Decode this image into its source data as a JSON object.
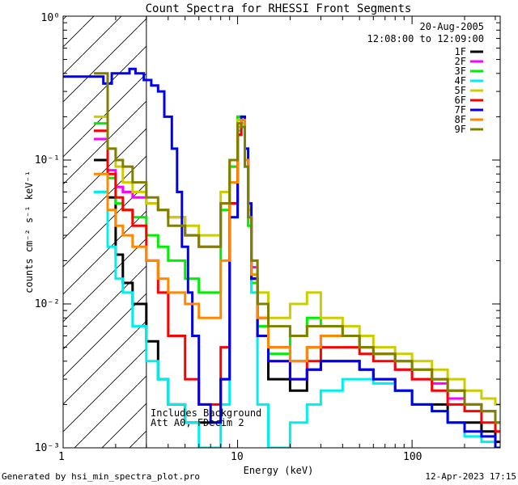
{
  "chart_data": {
    "type": "line",
    "title": "Count Spectra for RHESSI Front Segments",
    "xlabel": "Energy (keV)",
    "ylabel": "counts cm⁻² s⁻¹ keV⁻¹",
    "xscale": "log",
    "yscale": "log",
    "xlim": [
      1.0,
      320
    ],
    "ylim": [
      0.001,
      1.0
    ],
    "x_ticks": [
      "1",
      "10",
      "100"
    ],
    "y_ticks": [
      "10⁻³",
      "10⁻²",
      "10⁻¹",
      "10⁰"
    ],
    "date": "20-Aug-2005",
    "time_range": "12:08:00 to 12:09:00",
    "annotation_lines": [
      "Includes Background",
      "Att A0, FDecim 2"
    ],
    "hatched_region_keV": [
      1.0,
      3.0
    ],
    "series": [
      {
        "name": "1F",
        "color": "#000000",
        "x": [
          1.5,
          1.8,
          2.0,
          2.2,
          2.5,
          3.0,
          3.5,
          4.0,
          5.0,
          6.0,
          8.0,
          9.0,
          10.0,
          10.5,
          11.0,
          11.5,
          12.0,
          13.0,
          15.0,
          20.0,
          25.0,
          30.0,
          40.0,
          50.0,
          60.0,
          80.0,
          100.0,
          130.0,
          160.0,
          200.0,
          250.0,
          300.0
        ],
        "values": [
          0.1,
          0.055,
          0.022,
          0.014,
          0.01,
          0.0055,
          0.003,
          0.002,
          0.0015,
          0.0015,
          0.003,
          0.05,
          0.15,
          0.17,
          0.1,
          0.04,
          0.015,
          0.006,
          0.003,
          0.0025,
          0.0035,
          0.004,
          0.004,
          0.0035,
          0.003,
          0.0025,
          0.002,
          0.002,
          0.0015,
          0.0015,
          0.0013,
          0.0011
        ]
      },
      {
        "name": "2F",
        "color": "#ff00ff",
        "x": [
          1.5,
          1.8,
          2.0,
          2.2,
          2.5,
          3.0,
          3.5,
          4.0,
          5.0,
          6.0,
          8.0,
          9.0,
          10.0,
          10.5,
          11.0,
          11.5,
          12.0,
          13.0,
          15.0,
          20.0,
          25.0,
          30.0,
          40.0,
          50.0,
          60.0,
          80.0,
          100.0,
          130.0,
          160.0,
          200.0,
          250.0,
          300.0
        ],
        "values": [
          0.14,
          0.085,
          0.065,
          0.06,
          0.055,
          0.05,
          0.045,
          0.04,
          0.03,
          0.025,
          0.05,
          0.09,
          0.2,
          0.19,
          0.1,
          0.04,
          0.018,
          0.008,
          0.005,
          0.004,
          0.005,
          0.006,
          0.006,
          0.005,
          0.0045,
          0.0035,
          0.003,
          0.0028,
          0.0022,
          0.002,
          0.0018,
          0.0015
        ]
      },
      {
        "name": "3F",
        "color": "#00ee00",
        "x": [
          1.5,
          1.8,
          2.0,
          2.2,
          2.5,
          3.0,
          3.5,
          4.0,
          5.0,
          6.0,
          8.0,
          9.0,
          10.0,
          10.5,
          11.0,
          11.5,
          12.0,
          13.0,
          15.0,
          20.0,
          25.0,
          30.0,
          40.0,
          50.0,
          60.0,
          80.0,
          100.0,
          130.0,
          160.0,
          200.0,
          250.0,
          300.0
        ],
        "values": [
          0.18,
          0.075,
          0.05,
          0.045,
          0.04,
          0.03,
          0.025,
          0.02,
          0.015,
          0.012,
          0.045,
          0.09,
          0.2,
          0.18,
          0.09,
          0.035,
          0.014,
          0.007,
          0.0045,
          0.006,
          0.008,
          0.007,
          0.006,
          0.005,
          0.0045,
          0.004,
          0.0035,
          0.003,
          0.0025,
          0.002,
          0.0018,
          0.0015
        ]
      },
      {
        "name": "4F",
        "color": "#00eeee",
        "x": [
          1.5,
          1.8,
          2.0,
          2.2,
          2.5,
          3.0,
          3.5,
          4.0,
          5.0,
          6.0,
          8.0,
          9.0,
          10.0,
          10.5,
          11.0,
          11.5,
          12.0,
          13.0,
          15.0,
          20.0,
          25.0,
          30.0,
          40.0,
          50.0,
          60.0,
          80.0,
          100.0,
          130.0,
          160.0,
          200.0,
          250.0,
          300.0
        ],
        "values": [
          0.06,
          0.025,
          0.015,
          0.012,
          0.007,
          0.004,
          0.003,
          0.002,
          0.0015,
          0.001,
          0.002,
          0.04,
          0.16,
          0.2,
          0.12,
          0.04,
          0.012,
          0.002,
          0.001,
          0.0015,
          0.002,
          0.0025,
          0.003,
          0.003,
          0.0028,
          0.0025,
          0.002,
          0.0018,
          0.0015,
          0.0012,
          0.0011,
          0.001
        ]
      },
      {
        "name": "5F",
        "color": "#cccc00",
        "x": [
          1.5,
          1.8,
          2.0,
          2.2,
          2.5,
          3.0,
          3.5,
          4.0,
          5.0,
          6.0,
          8.0,
          9.0,
          10.0,
          10.5,
          11.0,
          11.5,
          12.0,
          13.0,
          15.0,
          20.0,
          25.0,
          30.0,
          40.0,
          50.0,
          60.0,
          80.0,
          100.0,
          130.0,
          160.0,
          200.0,
          250.0,
          300.0
        ],
        "values": [
          0.2,
          0.12,
          0.09,
          0.07,
          0.06,
          0.05,
          0.045,
          0.04,
          0.035,
          0.03,
          0.06,
          0.1,
          0.19,
          0.18,
          0.1,
          0.045,
          0.02,
          0.012,
          0.008,
          0.01,
          0.012,
          0.008,
          0.007,
          0.006,
          0.005,
          0.0045,
          0.004,
          0.0035,
          0.003,
          0.0025,
          0.0022,
          0.002
        ]
      },
      {
        "name": "6F",
        "color": "#ff0000",
        "x": [
          1.5,
          1.8,
          2.0,
          2.2,
          2.5,
          3.0,
          3.5,
          4.0,
          5.0,
          6.0,
          8.0,
          9.0,
          10.0,
          10.5,
          11.0,
          11.5,
          12.0,
          13.0,
          15.0,
          20.0,
          25.0,
          30.0,
          40.0,
          50.0,
          60.0,
          80.0,
          100.0,
          130.0,
          160.0,
          200.0,
          250.0,
          300.0
        ],
        "values": [
          0.16,
          0.08,
          0.055,
          0.045,
          0.035,
          0.02,
          0.012,
          0.006,
          0.003,
          0.002,
          0.005,
          0.05,
          0.15,
          0.17,
          0.1,
          0.04,
          0.015,
          0.006,
          0.004,
          0.003,
          0.004,
          0.005,
          0.005,
          0.0045,
          0.004,
          0.0035,
          0.003,
          0.0025,
          0.002,
          0.0018,
          0.0015,
          0.0013
        ]
      },
      {
        "name": "7F",
        "color": "#0000ee",
        "x": [
          1.0,
          1.3,
          1.5,
          1.7,
          1.9,
          2.1,
          2.4,
          2.6,
          2.9,
          3.2,
          3.5,
          3.8,
          4.2,
          4.5,
          4.8,
          5.2,
          5.5,
          6.0,
          7.0,
          8.0,
          9.0,
          10.0,
          10.5,
          11.0,
          11.5,
          12.0,
          13.0,
          15.0,
          20.0,
          25.0,
          30.0,
          40.0,
          50.0,
          60.0,
          80.0,
          100.0,
          130.0,
          160.0,
          200.0,
          250.0,
          300.0
        ],
        "values": [
          0.38,
          0.38,
          0.38,
          0.34,
          0.4,
          0.4,
          0.43,
          0.4,
          0.36,
          0.33,
          0.3,
          0.2,
          0.12,
          0.06,
          0.025,
          0.012,
          0.006,
          0.002,
          0.0015,
          0.003,
          0.04,
          0.17,
          0.2,
          0.12,
          0.05,
          0.015,
          0.006,
          0.004,
          0.003,
          0.0035,
          0.004,
          0.004,
          0.0035,
          0.003,
          0.0025,
          0.002,
          0.0018,
          0.0015,
          0.0013,
          0.0012,
          0.001
        ]
      },
      {
        "name": "8F",
        "color": "#ff8800",
        "x": [
          1.5,
          1.8,
          2.0,
          2.2,
          2.5,
          3.0,
          3.5,
          4.0,
          5.0,
          6.0,
          8.0,
          9.0,
          10.0,
          10.5,
          11.0,
          11.5,
          12.0,
          13.0,
          15.0,
          20.0,
          25.0,
          30.0,
          40.0,
          50.0,
          60.0,
          80.0,
          100.0,
          130.0,
          160.0,
          200.0,
          250.0,
          300.0
        ],
        "values": [
          0.08,
          0.045,
          0.035,
          0.03,
          0.025,
          0.02,
          0.015,
          0.012,
          0.01,
          0.008,
          0.02,
          0.07,
          0.17,
          0.19,
          0.1,
          0.04,
          0.016,
          0.008,
          0.005,
          0.004,
          0.005,
          0.006,
          0.006,
          0.005,
          0.0045,
          0.004,
          0.0035,
          0.003,
          0.0025,
          0.002,
          0.0018,
          0.0015
        ]
      },
      {
        "name": "9F",
        "color": "#808000",
        "x": [
          1.5,
          1.8,
          2.0,
          2.2,
          2.5,
          3.0,
          3.5,
          4.0,
          5.0,
          6.0,
          8.0,
          9.0,
          10.0,
          10.5,
          11.0,
          11.5,
          12.0,
          13.0,
          15.0,
          20.0,
          25.0,
          30.0,
          40.0,
          50.0,
          60.0,
          80.0,
          100.0,
          130.0,
          160.0,
          200.0,
          250.0,
          300.0
        ],
        "values": [
          0.4,
          0.12,
          0.1,
          0.09,
          0.07,
          0.055,
          0.045,
          0.035,
          0.03,
          0.025,
          0.05,
          0.1,
          0.18,
          0.17,
          0.09,
          0.04,
          0.02,
          0.01,
          0.007,
          0.006,
          0.007,
          0.007,
          0.006,
          0.005,
          0.0045,
          0.004,
          0.0035,
          0.003,
          0.0025,
          0.002,
          0.0018,
          0.0015
        ]
      }
    ]
  },
  "footer": {
    "generated_by": "Generated by hsi_min_spectra_plot.pro",
    "timestamp": "12-Apr-2023 17:15"
  }
}
